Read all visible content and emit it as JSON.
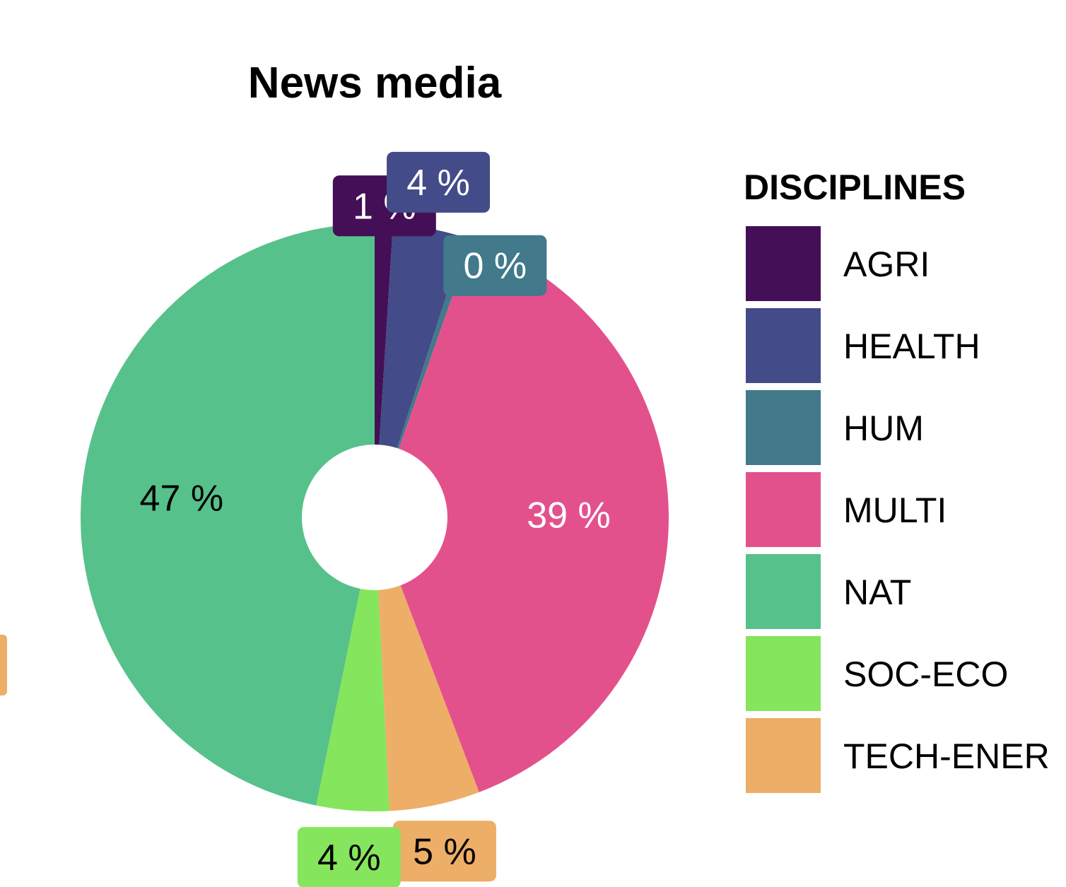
{
  "chart_data": {
    "type": "pie",
    "title": "News media",
    "legend_title": "DISCIPLINES",
    "legend_position": "right",
    "donut": true,
    "slices": [
      {
        "name": "AGRI",
        "value": 1,
        "label": "1 %",
        "color": "#440F56",
        "label_color": "#FFFFFF",
        "label_style": "box"
      },
      {
        "name": "HEALTH",
        "value": 4,
        "label": "4 %",
        "color": "#434B89",
        "label_color": "#FFFFFF",
        "label_style": "box"
      },
      {
        "name": "HUM",
        "value": 0.4,
        "label": "0 %",
        "color": "#42798B",
        "label_color": "#FFFFFF",
        "label_style": "box"
      },
      {
        "name": "MULTI",
        "value": 39,
        "label": "39 %",
        "color": "#E3518D",
        "label_color": "#FFFFFF",
        "label_style": "inside"
      },
      {
        "name": "TECH-ENER",
        "value": 5,
        "label": "5 %",
        "color": "#EDAE67",
        "label_color": "#000000",
        "label_style": "box"
      },
      {
        "name": "SOC-ECO",
        "value": 4,
        "label": "4 %",
        "color": "#85E55C",
        "label_color": "#000000",
        "label_style": "box"
      },
      {
        "name": "NAT",
        "value": 47,
        "label": "47 %",
        "color": "#56C18B",
        "label_color": "#000000",
        "label_style": "inside"
      }
    ],
    "legend_order": [
      "AGRI",
      "HEALTH",
      "HUM",
      "MULTI",
      "NAT",
      "SOC-ECO",
      "TECH-ENER"
    ]
  }
}
